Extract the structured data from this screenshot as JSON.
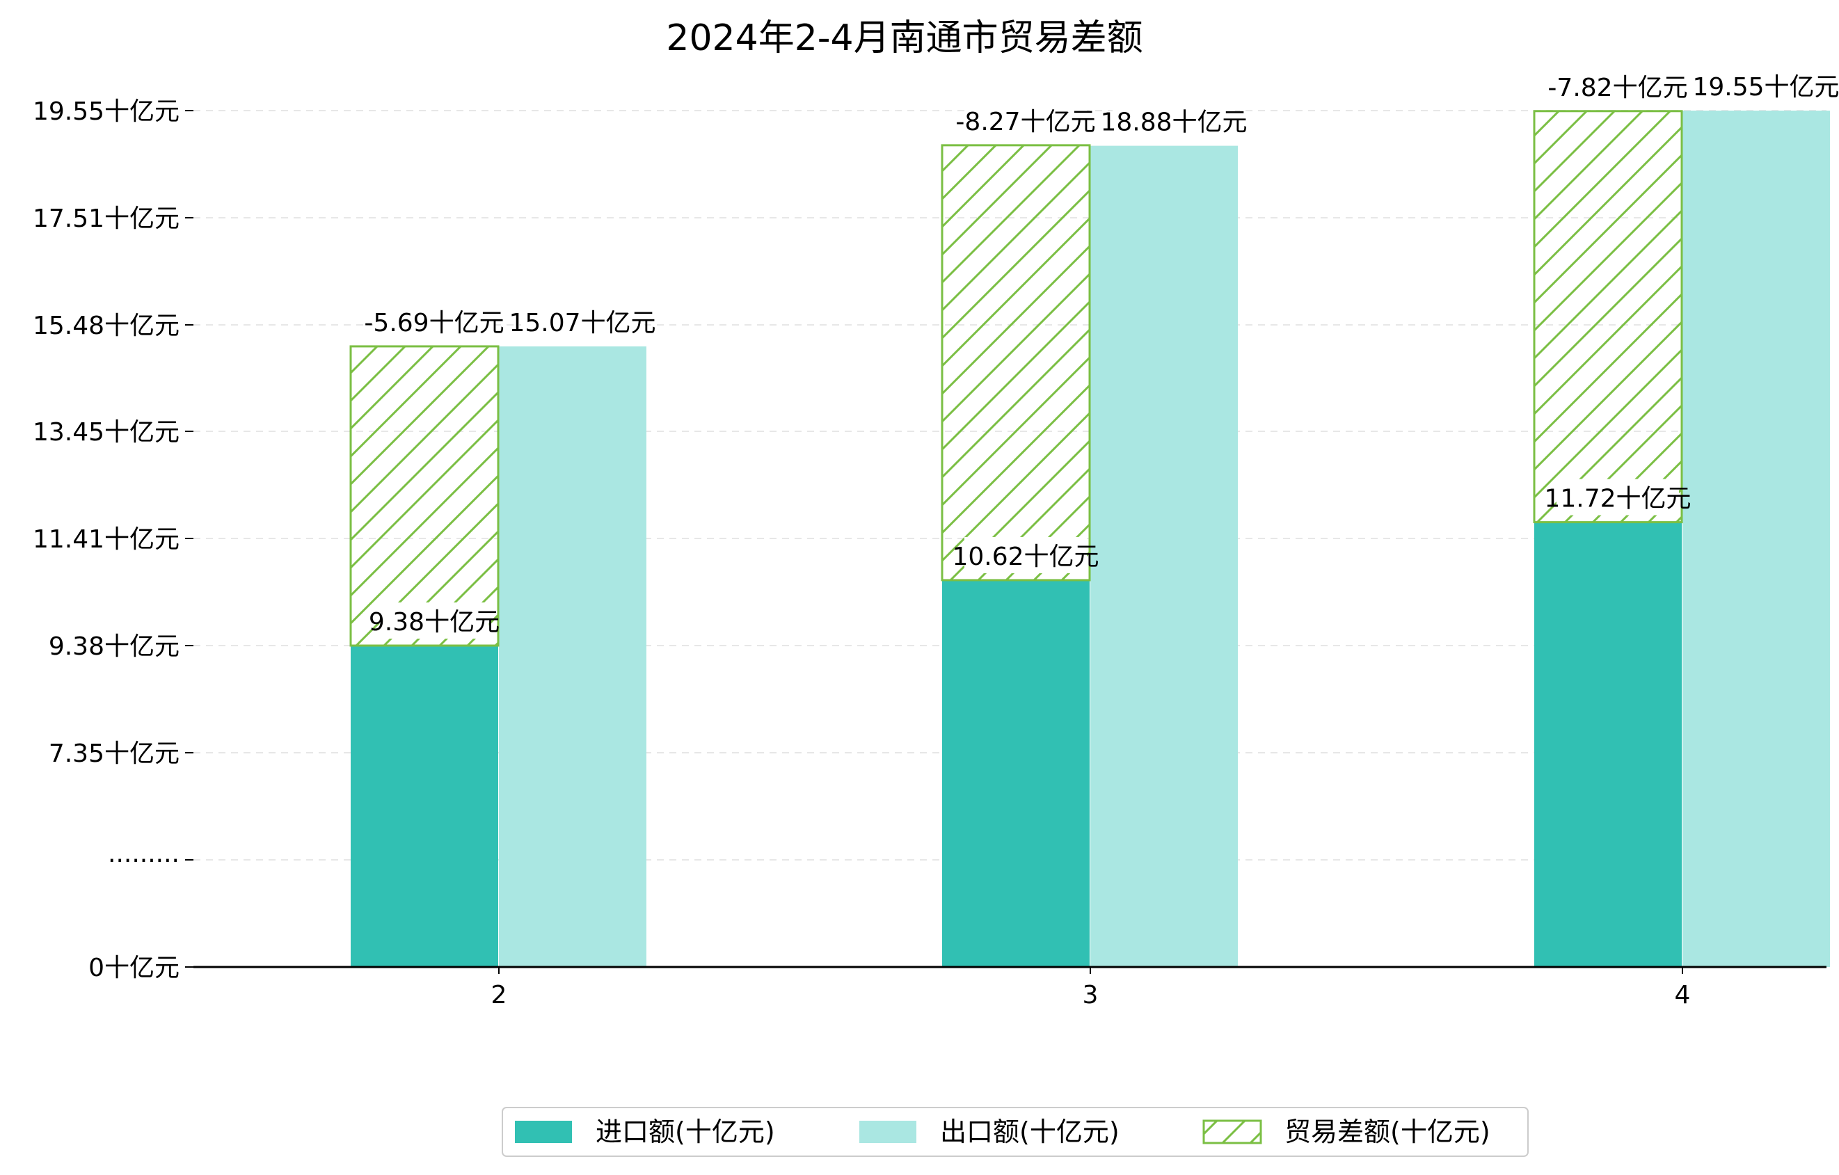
{
  "chart_data": {
    "type": "bar",
    "title": "2024年2-4月南通市贸易差额",
    "xlabel": "",
    "ylabel": "",
    "categories": [
      "2",
      "3",
      "4"
    ],
    "y_axis": {
      "tick_labels": [
        "0十亿元",
        "·········",
        "7.35十亿元",
        "9.38十亿元",
        "11.41十亿元",
        "13.45十亿元",
        "15.48十亿元",
        "17.51十亿元",
        "19.55十亿元"
      ],
      "tick_values": [
        0,
        5.32,
        7.35,
        9.38,
        11.41,
        13.45,
        15.48,
        17.51,
        19.55
      ],
      "broken_axis": true,
      "grid": "horizontal dashed"
    },
    "series": [
      {
        "name": "进口额(十亿元)",
        "values": [
          9.38,
          10.62,
          11.72
        ],
        "labels": [
          "9.38十亿元",
          "10.62十亿元",
          "11.72十亿元"
        ],
        "color": "#31c0b3"
      },
      {
        "name": "出口额(十亿元)",
        "values": [
          15.07,
          18.88,
          19.55
        ],
        "labels": [
          "15.07十亿元",
          "18.88十亿元",
          "19.55十亿元"
        ],
        "color": "#aae7e2"
      },
      {
        "name": "贸易差额(十亿元)",
        "values": [
          -5.69,
          -8.27,
          -7.82
        ],
        "labels": [
          "-5.69十亿元",
          "-8.27十亿元",
          "-7.82十亿元"
        ],
        "color": "#7bbf44",
        "pattern": "hatch"
      }
    ],
    "legend": {
      "position": "bottom-center"
    }
  }
}
